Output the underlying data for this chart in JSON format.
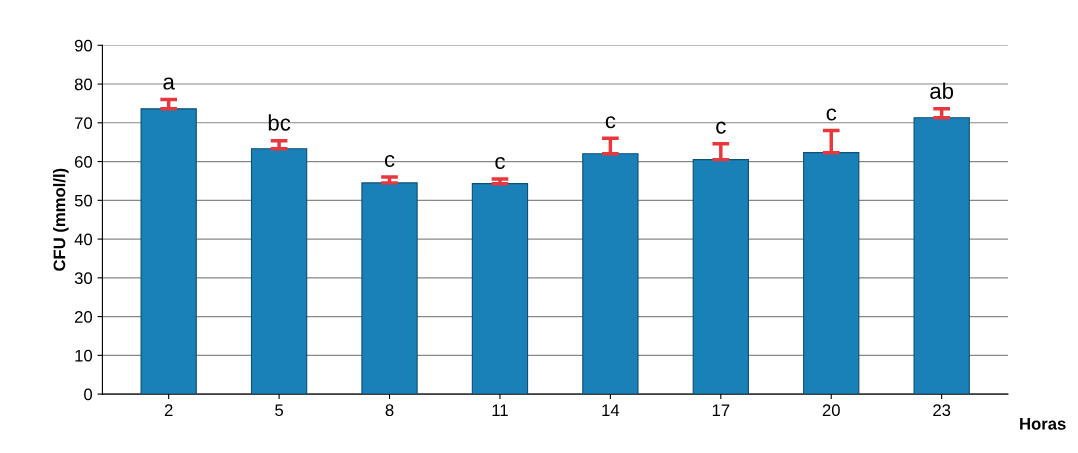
{
  "chart_data": {
    "type": "bar",
    "ylabel": "CFU (mmol/l)",
    "xlabel": "Horas",
    "categories": [
      "2",
      "5",
      "8",
      "11",
      "14",
      "17",
      "20",
      "23"
    ],
    "values": [
      73.6,
      63.3,
      54.5,
      54.3,
      62,
      60.5,
      62.3,
      71.3
    ],
    "errors": [
      [
        73.6,
        76
      ],
      [
        63.3,
        65.4
      ],
      [
        54.5,
        56
      ],
      [
        54.3,
        55.5
      ],
      [
        62,
        66
      ],
      [
        60.5,
        64.6
      ],
      [
        62.3,
        68
      ],
      [
        71.3,
        73.6
      ]
    ],
    "color": "#1a80b8",
    "ylim": [
      0,
      90
    ],
    "yticks": [
      0,
      10,
      20,
      30,
      40,
      50,
      60,
      70,
      80,
      90
    ],
    "grid": "y",
    "annotations": [
      {
        "text": "a",
        "x": "2",
        "y": 76
      },
      {
        "text": "bc",
        "x": "5",
        "y": 65.4
      },
      {
        "text": "c",
        "x": "8",
        "y": 56
      },
      {
        "text": "c",
        "x": "11",
        "y": 55.5
      },
      {
        "text": "c",
        "x": "14",
        "y": 66
      },
      {
        "text": "c",
        "x": "17",
        "y": 64.6
      },
      {
        "text": "c",
        "x": "20",
        "y": 68
      },
      {
        "text": "ab",
        "x": "23",
        "y": 73.6
      }
    ]
  }
}
